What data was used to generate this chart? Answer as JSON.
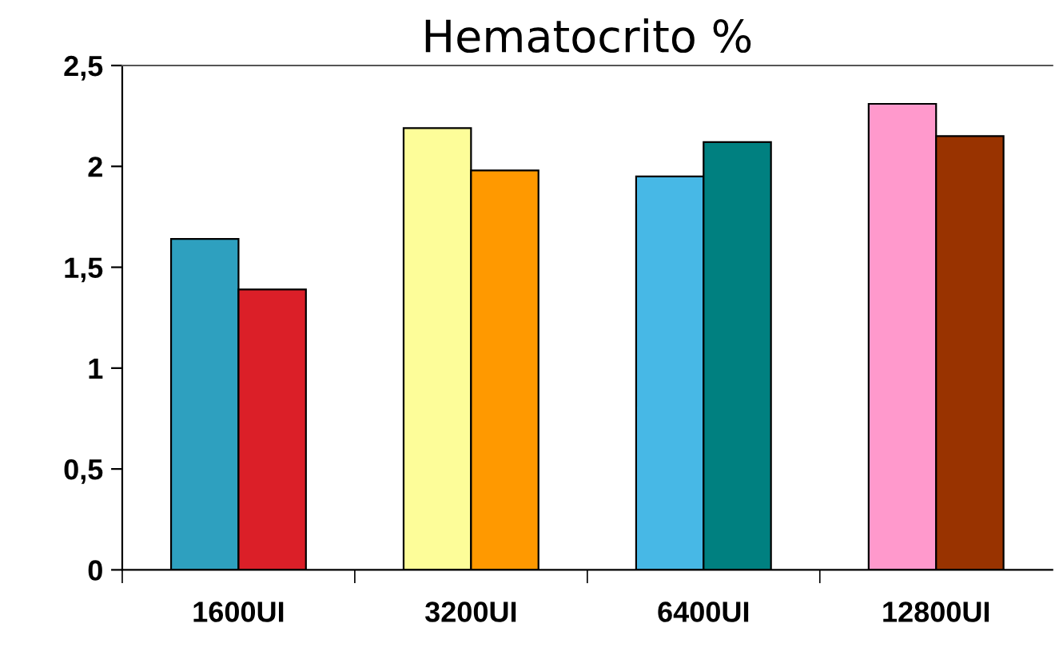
{
  "chart_data": {
    "type": "bar",
    "title": "Hematocrito %",
    "categories": [
      "1600UI",
      "3200UI",
      "6400UI",
      "12800UI"
    ],
    "series": [
      {
        "colors": [
          "#2ea0bf",
          "#fdfd99",
          "#47b8e6",
          "#ff99cc"
        ],
        "values": [
          1.64,
          2.19,
          1.95,
          2.31
        ]
      },
      {
        "colors": [
          "#db1f28",
          "#ff9900",
          "#008080",
          "#993300"
        ],
        "values": [
          1.39,
          1.98,
          2.12,
          2.15
        ]
      }
    ],
    "ylim": [
      0,
      2.5
    ],
    "yticks": [
      0,
      {
        "value": 0.5,
        "label": "0,5"
      },
      1,
      {
        "value": 1.5,
        "label": "1,5"
      },
      2,
      {
        "value": 2.5,
        "label": "2,5"
      }
    ],
    "grid": false,
    "legend": false
  }
}
